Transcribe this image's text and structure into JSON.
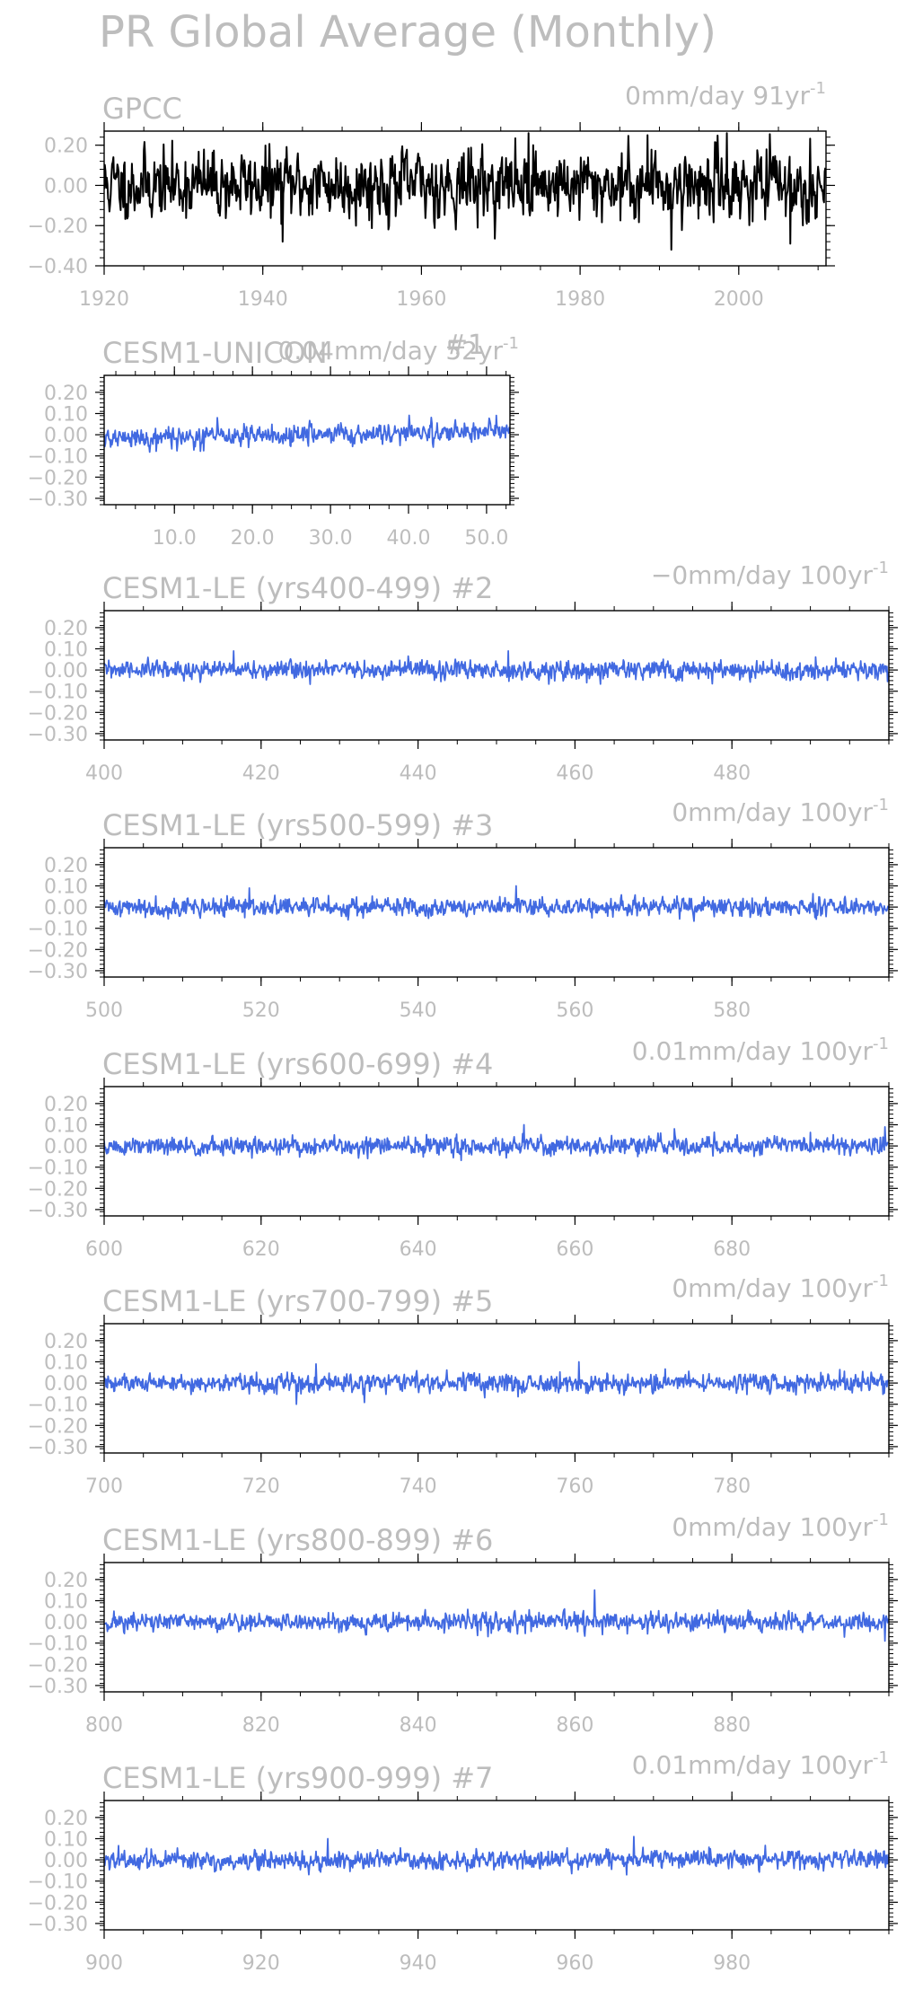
{
  "figure_title": "PR Global Average (Monthly)",
  "colors": {
    "text": "#bdbdbd",
    "axis": "#000000",
    "obs_series": "#000000",
    "model_series": "#4169e1"
  },
  "chart_data": [
    {
      "type": "line",
      "title": "GPCC",
      "trend": "0mm/day 91yr",
      "trend_unit_exp": "-1",
      "series_color": "obs_series",
      "x_range": [
        1920,
        2011
      ],
      "ylim": [
        -0.4,
        0.27
      ],
      "x_ticks": [
        1920,
        1940,
        1960,
        1980,
        2000
      ],
      "x_tick_labels": [
        "1920",
        "1940",
        "1960",
        "1980",
        "2000"
      ],
      "y_ticks": [
        0.2,
        0.0,
        -0.2,
        -0.4
      ],
      "y_tick_labels": [
        "0.20",
        "0.00",
        "−0.20",
        "−0.40"
      ],
      "series": [
        {
          "std": 0.085,
          "ar": 0.3,
          "seed": 11,
          "trend": 0.0,
          "features": [
            [
              1942.5,
              -0.28
            ],
            [
              1973.5,
              0.26
            ],
            [
              1988.5,
              0.25
            ],
            [
              1991.5,
              -0.32
            ],
            [
              1998.5,
              0.26
            ],
            [
              2006.5,
              -0.29
            ]
          ]
        }
      ]
    },
    {
      "type": "line",
      "title": "CESM1-UNICON",
      "run_label": "#1",
      "trend": "0.04mm/day 52yr",
      "trend_unit_exp": "-1",
      "series_color": "model_series",
      "x_range": [
        1,
        53
      ],
      "ylim": [
        -0.33,
        0.28
      ],
      "x_ticks": [
        10,
        20,
        30,
        40,
        50
      ],
      "x_tick_labels": [
        "10.0",
        "20.0",
        "30.0",
        "40.0",
        "50.0"
      ],
      "y_ticks": [
        0.2,
        0.1,
        0.0,
        -0.1,
        -0.2,
        -0.3
      ],
      "y_tick_labels": [
        "0.20",
        "0.10",
        "0.00",
        "−0.10",
        "−0.20",
        "−0.30"
      ],
      "series": [
        {
          "std": 0.024,
          "ar": 0.2,
          "seed": 21,
          "trend": 0.04,
          "features": [
            [
              15.5,
              0.08
            ],
            [
              19.5,
              -0.06
            ]
          ]
        }
      ]
    },
    {
      "type": "line",
      "title": "CESM1-LE (yrs400-499)",
      "run_label": "#2",
      "trend": "−0mm/day 100yr",
      "trend_unit_exp": "-1",
      "series_color": "model_series",
      "x_range": [
        400,
        500
      ],
      "ylim": [
        -0.33,
        0.28
      ],
      "x_ticks": [
        400,
        420,
        440,
        460,
        480
      ],
      "x_tick_labels": [
        "400",
        "420",
        "440",
        "460",
        "480"
      ],
      "y_ticks": [
        0.2,
        0.1,
        0.0,
        -0.1,
        -0.2,
        -0.3
      ],
      "y_tick_labels": [
        "0.20",
        "0.10",
        "0.00",
        "−0.10",
        "−0.20",
        "−0.30"
      ],
      "series": [
        {
          "std": 0.022,
          "ar": 0.2,
          "seed": 31,
          "trend": 0.0,
          "features": [
            [
              416.5,
              0.09
            ],
            [
              451.5,
              0.09
            ],
            [
              461.5,
              -0.06
            ]
          ]
        }
      ]
    },
    {
      "type": "line",
      "title": "CESM1-LE (yrs500-599)",
      "run_label": "#3",
      "trend": "0mm/day 100yr",
      "trend_unit_exp": "-1",
      "series_color": "model_series",
      "x_range": [
        500,
        600
      ],
      "ylim": [
        -0.33,
        0.28
      ],
      "x_ticks": [
        500,
        520,
        540,
        560,
        580
      ],
      "x_tick_labels": [
        "500",
        "520",
        "540",
        "560",
        "580"
      ],
      "y_ticks": [
        0.2,
        0.1,
        0.0,
        -0.1,
        -0.2,
        -0.3
      ],
      "y_tick_labels": [
        "0.20",
        "0.10",
        "0.00",
        "−0.10",
        "−0.20",
        "−0.30"
      ],
      "series": [
        {
          "std": 0.022,
          "ar": 0.2,
          "seed": 41,
          "trend": 0.0,
          "features": [
            [
              518.5,
              0.09
            ],
            [
              552.5,
              0.1
            ]
          ]
        }
      ]
    },
    {
      "type": "line",
      "title": "CESM1-LE (yrs600-699)",
      "run_label": "#4",
      "trend": "0.01mm/day 100yr",
      "trend_unit_exp": "-1",
      "series_color": "model_series",
      "x_range": [
        600,
        700
      ],
      "ylim": [
        -0.33,
        0.28
      ],
      "x_ticks": [
        600,
        620,
        640,
        660,
        680
      ],
      "x_tick_labels": [
        "600",
        "620",
        "640",
        "660",
        "680"
      ],
      "y_ticks": [
        0.2,
        0.1,
        0.0,
        -0.1,
        -0.2,
        -0.3
      ],
      "y_tick_labels": [
        "0.20",
        "0.10",
        "0.00",
        "−0.10",
        "−0.20",
        "−0.30"
      ],
      "series": [
        {
          "std": 0.022,
          "ar": 0.2,
          "seed": 51,
          "trend": 0.01,
          "features": [
            [
              653.5,
              0.1
            ],
            [
              699.5,
              0.09
            ]
          ]
        }
      ]
    },
    {
      "type": "line",
      "title": "CESM1-LE (yrs700-799)",
      "run_label": "#5",
      "trend": "0mm/day 100yr",
      "trend_unit_exp": "-1",
      "series_color": "model_series",
      "x_range": [
        700,
        800
      ],
      "ylim": [
        -0.33,
        0.28
      ],
      "x_ticks": [
        700,
        720,
        740,
        760,
        780
      ],
      "x_tick_labels": [
        "700",
        "720",
        "740",
        "760",
        "780"
      ],
      "y_ticks": [
        0.2,
        0.1,
        0.0,
        -0.1,
        -0.2,
        -0.3
      ],
      "y_tick_labels": [
        "0.20",
        "0.10",
        "0.00",
        "−0.10",
        "−0.20",
        "−0.30"
      ],
      "series": [
        {
          "std": 0.022,
          "ar": 0.2,
          "seed": 61,
          "trend": 0.0,
          "features": [
            [
              724.5,
              -0.1
            ],
            [
              727.0,
              0.09
            ],
            [
              760.5,
              0.1
            ]
          ]
        }
      ]
    },
    {
      "type": "line",
      "title": "CESM1-LE (yrs800-899)",
      "run_label": "#6",
      "trend": "0mm/day 100yr",
      "trend_unit_exp": "-1",
      "series_color": "model_series",
      "x_range": [
        800,
        900
      ],
      "ylim": [
        -0.33,
        0.28
      ],
      "x_ticks": [
        800,
        820,
        840,
        860,
        880
      ],
      "x_tick_labels": [
        "800",
        "820",
        "840",
        "860",
        "880"
      ],
      "y_ticks": [
        0.2,
        0.1,
        0.0,
        -0.1,
        -0.2,
        -0.3
      ],
      "y_tick_labels": [
        "0.20",
        "0.10",
        "0.00",
        "−0.10",
        "−0.20",
        "−0.30"
      ],
      "series": [
        {
          "std": 0.022,
          "ar": 0.2,
          "seed": 71,
          "trend": 0.0,
          "features": [
            [
              862.5,
              0.15
            ],
            [
              899.5,
              -0.09
            ]
          ]
        }
      ]
    },
    {
      "type": "line",
      "title": "CESM1-LE (yrs900-999)",
      "run_label": "#7",
      "trend": "0.01mm/day 100yr",
      "trend_unit_exp": "-1",
      "series_color": "model_series",
      "x_range": [
        900,
        1000
      ],
      "ylim": [
        -0.33,
        0.28
      ],
      "x_ticks": [
        900,
        920,
        940,
        960,
        980
      ],
      "x_tick_labels": [
        "900",
        "920",
        "940",
        "960",
        "980"
      ],
      "y_ticks": [
        0.2,
        0.1,
        0.0,
        -0.1,
        -0.2,
        -0.3
      ],
      "y_tick_labels": [
        "0.20",
        "0.10",
        "0.00",
        "−0.10",
        "−0.20",
        "−0.30"
      ],
      "series": [
        {
          "std": 0.022,
          "ar": 0.2,
          "seed": 81,
          "trend": 0.01,
          "features": [
            [
              928.5,
              0.1
            ],
            [
              967.5,
              0.11
            ]
          ]
        }
      ]
    }
  ]
}
